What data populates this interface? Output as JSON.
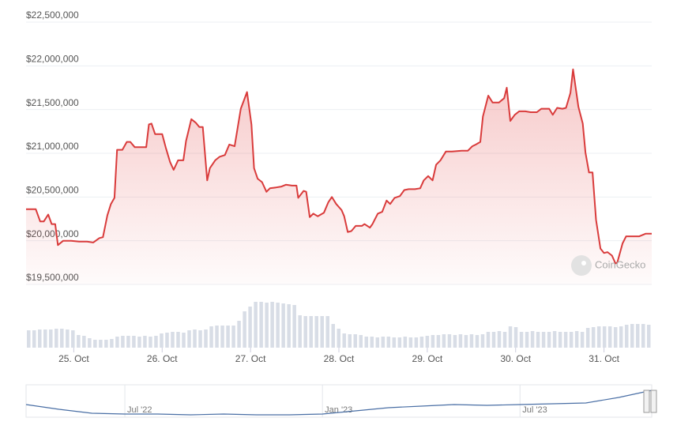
{
  "chart_data": [
    {
      "type": "line",
      "color": "#d93b3b",
      "watermark": "CoinGecko",
      "xlim": [
        24.46,
        31.54
      ],
      "xticks": [
        {
          "value": 25,
          "label": "25. Oct"
        },
        {
          "value": 26,
          "label": "26. Oct"
        },
        {
          "value": 27,
          "label": "27. Oct"
        },
        {
          "value": 28,
          "label": "28. Oct"
        },
        {
          "value": 29,
          "label": "29. Oct"
        },
        {
          "value": 30,
          "label": "30. Oct"
        },
        {
          "value": 31,
          "label": "31. Oct"
        }
      ],
      "ylim": [
        19500000,
        22500000
      ],
      "yticks": [
        {
          "value": 19500000,
          "label": "$19,500,000"
        },
        {
          "value": 20000000,
          "label": "$20,000,000"
        },
        {
          "value": 20500000,
          "label": "$20,500,000"
        },
        {
          "value": 21000000,
          "label": "$21,000,000"
        },
        {
          "value": 21500000,
          "label": "$21,500,000"
        },
        {
          "value": 22000000,
          "label": "$22,000,000"
        },
        {
          "value": 22500000,
          "label": "$22,500,000"
        }
      ],
      "grid": true,
      "x": [
        24.46,
        24.57,
        24.62,
        24.66,
        24.71,
        24.75,
        24.79,
        24.82,
        24.88,
        24.97,
        25.06,
        25.15,
        25.22,
        25.29,
        25.33,
        25.38,
        25.42,
        25.46,
        25.49,
        25.55,
        25.6,
        25.64,
        25.69,
        25.78,
        25.82,
        25.85,
        25.88,
        25.92,
        26.0,
        26.04,
        26.09,
        26.13,
        26.18,
        26.24,
        26.27,
        26.33,
        26.38,
        26.42,
        26.46,
        26.51,
        26.54,
        26.6,
        26.65,
        26.71,
        26.76,
        26.82,
        26.89,
        26.96,
        27.01,
        27.04,
        27.08,
        27.13,
        27.18,
        27.22,
        27.29,
        27.35,
        27.4,
        27.47,
        27.52,
        27.54,
        27.6,
        27.63,
        27.67,
        27.71,
        27.76,
        27.83,
        27.88,
        27.92,
        27.97,
        28.03,
        28.06,
        28.1,
        28.14,
        28.19,
        28.26,
        28.29,
        28.35,
        28.38,
        28.44,
        28.49,
        28.54,
        28.58,
        28.63,
        28.69,
        28.74,
        28.79,
        28.86,
        28.92,
        28.96,
        29.01,
        29.06,
        29.1,
        29.15,
        29.21,
        29.28,
        29.39,
        29.46,
        29.51,
        29.55,
        29.6,
        29.63,
        29.69,
        29.74,
        29.81,
        29.87,
        29.9,
        29.94,
        29.99,
        30.04,
        30.11,
        30.17,
        30.24,
        30.29,
        30.38,
        30.42,
        30.47,
        30.53,
        30.57,
        30.62,
        30.65,
        30.71,
        30.76,
        30.79,
        30.83,
        30.87,
        30.91,
        30.96,
        31.0,
        31.04,
        31.09,
        31.13,
        31.15,
        31.21,
        31.25,
        31.31,
        31.4,
        31.47,
        31.54
      ],
      "values": [
        20360000,
        20360000,
        20220000,
        20220000,
        20300000,
        20190000,
        20190000,
        19950000,
        20000000,
        20000000,
        19990000,
        19990000,
        19980000,
        20030000,
        20040000,
        20290000,
        20420000,
        20490000,
        21040000,
        21040000,
        21130000,
        21130000,
        21070000,
        21070000,
        21070000,
        21330000,
        21340000,
        21220000,
        21220000,
        21070000,
        20900000,
        20810000,
        20920000,
        20920000,
        21140000,
        21390000,
        21350000,
        21300000,
        21300000,
        20690000,
        20830000,
        20920000,
        20960000,
        20980000,
        21100000,
        21080000,
        21510000,
        21700000,
        21330000,
        20830000,
        20710000,
        20670000,
        20560000,
        20600000,
        20610000,
        20620000,
        20640000,
        20630000,
        20630000,
        20490000,
        20570000,
        20560000,
        20270000,
        20310000,
        20280000,
        20320000,
        20440000,
        20500000,
        20420000,
        20350000,
        20280000,
        20100000,
        20110000,
        20170000,
        20170000,
        20190000,
        20150000,
        20190000,
        20310000,
        20330000,
        20460000,
        20420000,
        20490000,
        20510000,
        20580000,
        20590000,
        20590000,
        20600000,
        20690000,
        20740000,
        20690000,
        20870000,
        20920000,
        21020000,
        21020000,
        21030000,
        21030000,
        21080000,
        21100000,
        21130000,
        21420000,
        21660000,
        21580000,
        21580000,
        21630000,
        21750000,
        21370000,
        21440000,
        21480000,
        21480000,
        21470000,
        21470000,
        21510000,
        21510000,
        21440000,
        21520000,
        21510000,
        21520000,
        21690000,
        21960000,
        21530000,
        21340000,
        21010000,
        20780000,
        20780000,
        20240000,
        19910000,
        19860000,
        19870000,
        19830000,
        19740000,
        19750000,
        19970000,
        20050000,
        20050000,
        20050000,
        20080000,
        20080000
      ]
    },
    {
      "type": "bar",
      "color": "#d8dde6",
      "values": [
        22,
        22,
        23,
        23,
        23,
        24,
        24,
        23,
        22,
        16,
        15,
        12,
        10,
        10,
        10,
        11,
        14,
        15,
        15,
        15,
        14,
        15,
        14,
        15,
        18,
        19,
        20,
        20,
        19,
        22,
        23,
        22,
        23,
        27,
        28,
        28,
        28,
        28,
        34,
        46,
        52,
        58,
        58,
        57,
        58,
        57,
        56,
        55,
        54,
        41,
        40,
        40,
        40,
        40,
        40,
        30,
        24,
        18,
        17,
        17,
        16,
        14,
        14,
        13,
        14,
        14,
        13,
        13,
        14,
        13,
        13,
        14,
        15,
        16,
        16,
        17,
        17,
        16,
        17,
        16,
        17,
        16,
        17,
        20,
        20,
        21,
        20,
        27,
        26,
        20,
        20,
        21,
        20,
        20,
        20,
        21,
        20,
        20,
        20,
        21,
        20,
        25,
        26,
        27,
        27,
        27,
        26,
        27,
        29,
        30,
        30,
        30,
        29
      ]
    },
    {
      "type": "navigator",
      "color": "#4a6fa5",
      "categories": [
        null,
        null,
        null,
        "Jul '22",
        null,
        null,
        null,
        null,
        null,
        "Jan '23",
        null,
        null,
        null,
        null,
        null,
        "Jul '23",
        null,
        null,
        null,
        null
      ],
      "values": [
        16,
        10,
        5,
        4,
        4,
        3,
        4,
        3,
        3,
        4,
        8,
        12,
        14,
        16,
        15,
        16,
        17,
        18,
        25,
        34
      ]
    }
  ]
}
